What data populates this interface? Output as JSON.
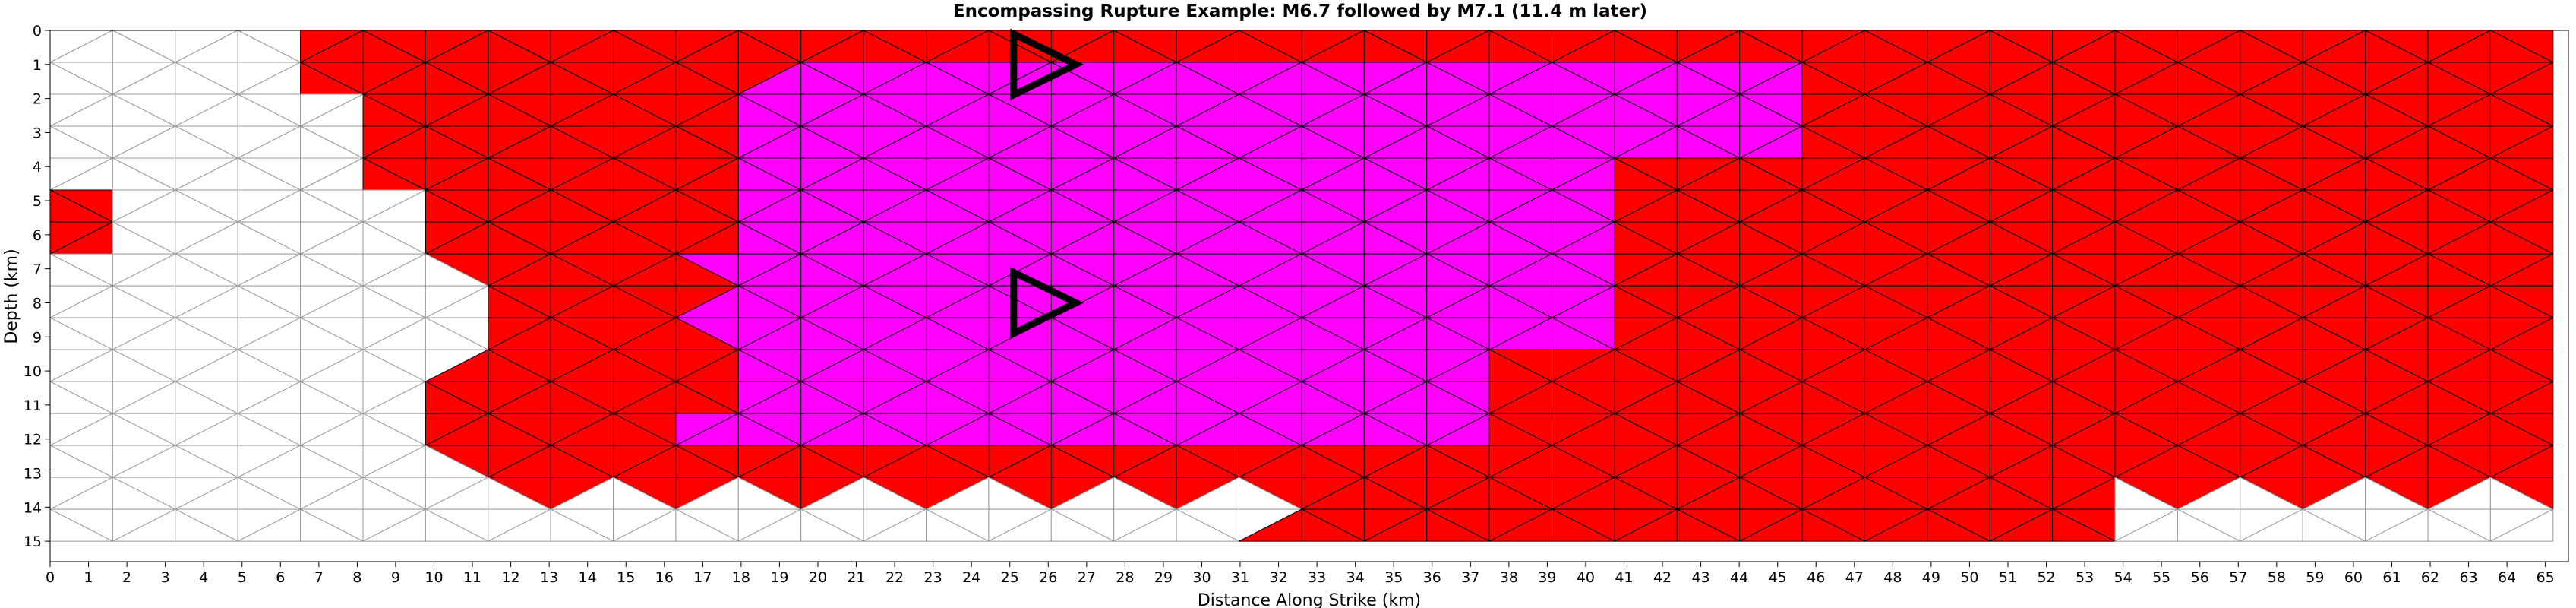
{
  "chart_data": {
    "type": "mesh",
    "title": "Encompassing Rupture Example: M6.7 followed by M7.1 (11.4 m later)",
    "xlabel": "Distance Along Strike (km)",
    "ylabel": "Depth (km)",
    "xlim": [
      0,
      65.6
    ],
    "ylim": [
      15.6,
      0
    ],
    "xticks": [
      0,
      1,
      2,
      3,
      4,
      5,
      6,
      7,
      8,
      9,
      10,
      11,
      12,
      13,
      14,
      15,
      16,
      17,
      18,
      19,
      20,
      21,
      22,
      23,
      24,
      25,
      26,
      27,
      28,
      29,
      30,
      31,
      32,
      33,
      34,
      35,
      36,
      37,
      38,
      39,
      40,
      41,
      42,
      43,
      44,
      45,
      46,
      47,
      48,
      49,
      50,
      51,
      52,
      53,
      54,
      55,
      56,
      57,
      58,
      59,
      60,
      61,
      62,
      63,
      64,
      65
    ],
    "yticks": [
      0,
      1,
      2,
      3,
      4,
      5,
      6,
      7,
      8,
      9,
      10,
      11,
      12,
      13,
      14,
      15
    ],
    "grid": false,
    "mesh": {
      "columns_x": [
        0,
        1.63,
        3.26,
        4.89,
        6.52,
        8.15,
        9.78,
        11.41,
        13.04,
        14.67,
        16.3,
        17.93,
        19.56,
        21.19,
        22.82,
        24.45,
        26.08,
        27.71,
        29.34,
        30.97,
        32.6,
        34.23,
        35.86,
        37.49,
        39.12,
        40.75,
        42.38,
        44.01,
        45.64,
        47.27,
        48.9,
        50.53,
        52.16,
        53.79,
        55.42,
        57.05,
        58.68,
        60.31,
        61.94,
        63.57,
        65.2
      ],
      "row_depth_step_km": 0.9375,
      "row_count": 16,
      "mesh_bottom_depth_km": 15.0,
      "triangles_per_cell": 2
    },
    "series": [
      {
        "name": "M6.7",
        "color": "#ff00ff"
      },
      {
        "name": "M7.1",
        "color": "#ff0000"
      }
    ],
    "hypocenter_markers": [
      {
        "x": 25.1,
        "y": 1.0
      },
      {
        "x": 25.1,
        "y": 8.0
      }
    ],
    "rupture_extents": {
      "M6.7": [
        {
          "depth_from": 1.0,
          "depth_to": 2.0,
          "x_from": 18.5,
          "x_to": 46.0
        },
        {
          "depth_from": 2.0,
          "depth_to": 4.0,
          "x_from": 18.0,
          "x_to": 46.0
        },
        {
          "depth_from": 4.0,
          "depth_to": 6.5,
          "x_from": 18.0,
          "x_to": 41.0
        },
        {
          "depth_from": 6.5,
          "depth_to": 9.5,
          "x_from": 17.0,
          "x_to": 41.0
        },
        {
          "depth_from": 9.5,
          "depth_to": 11.0,
          "x_from": 18.0,
          "x_to": 38.0
        },
        {
          "depth_from": 11.0,
          "depth_to": 12.5,
          "x_from": 16.0,
          "x_to": 38.0
        }
      ],
      "M7.1": [
        {
          "depth_from": 0.0,
          "depth_to": 2.0,
          "x_from": 7.0,
          "x_to": 65.6
        },
        {
          "depth_from": 2.0,
          "depth_to": 5.0,
          "x_from": 8.2,
          "x_to": 65.6
        },
        {
          "depth_from": 5.0,
          "depth_to": 7.0,
          "x_from": 10.0,
          "x_to": 65.6
        },
        {
          "depth_from": 7.0,
          "depth_to": 10.0,
          "x_from": 11.8,
          "x_to": 65.6
        },
        {
          "depth_from": 10.0,
          "depth_to": 12.0,
          "x_from": 10.2,
          "x_to": 65.6
        },
        {
          "depth_from": 12.0,
          "depth_to": 13.5,
          "x_from": 10.5,
          "x_to": 65.6
        },
        {
          "depth_from": 13.5,
          "depth_to": 15.0,
          "x_from": 31.6,
          "x_to": 53.9
        },
        {
          "depth_from": 4.4,
          "depth_to": 6.4,
          "x_from": 0.0,
          "x_to": 1.4
        }
      ]
    }
  }
}
